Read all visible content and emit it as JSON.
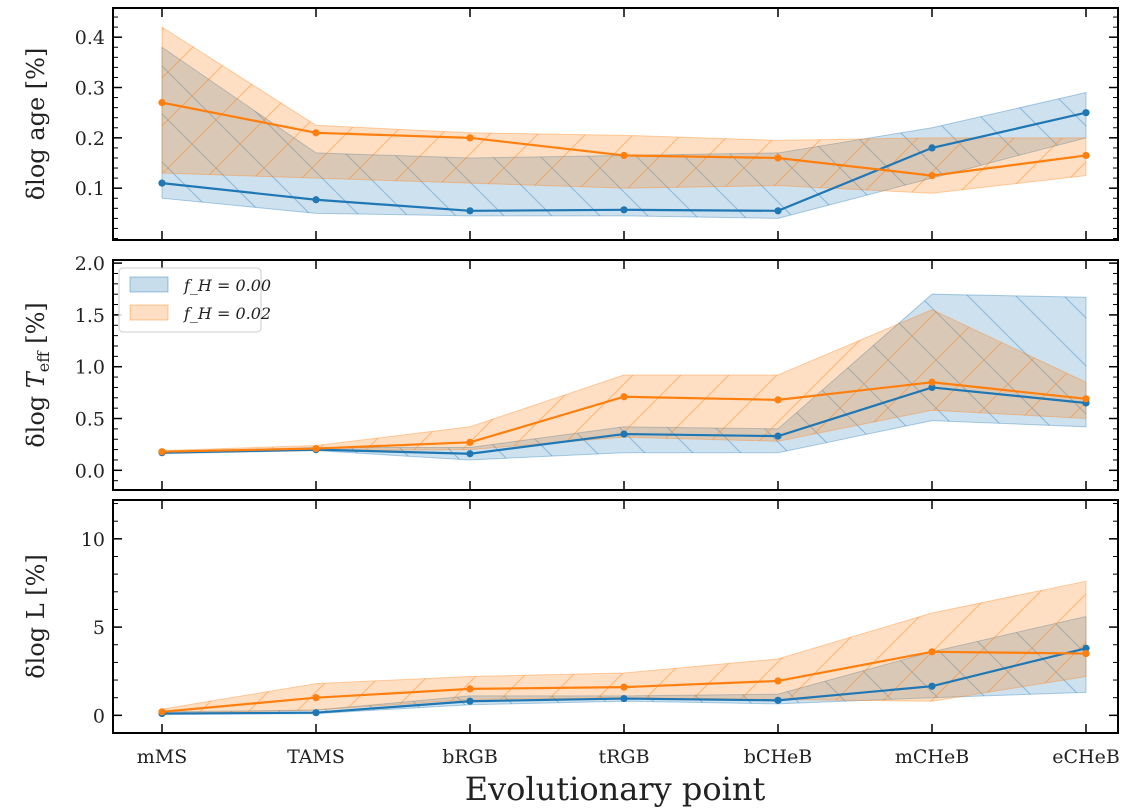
{
  "colors": {
    "blue": "#1f77b4",
    "orange": "#ff7f0e"
  },
  "chart_data": [
    {
      "type": "line",
      "ylabel": "δlog age [%]",
      "categories": [
        "mMS",
        "TAMS",
        "bRGB",
        "tRGB",
        "bCHeB",
        "mCHeB",
        "eCHeB"
      ],
      "ylim": [
        -0.003,
        0.458
      ],
      "yticks": [
        "0.1",
        "0.2",
        "0.3",
        "0.4"
      ],
      "ytick_values": [
        0.1,
        0.2,
        0.3,
        0.4
      ],
      "series": [
        {
          "name": "f_H = 0.00",
          "color": "blue",
          "values": [
            0.11,
            0.077,
            0.055,
            0.057,
            0.055,
            0.18,
            0.25
          ],
          "upper": [
            0.38,
            0.17,
            0.16,
            0.165,
            0.17,
            0.22,
            0.29
          ],
          "lower": [
            0.08,
            0.05,
            0.045,
            0.045,
            0.04,
            0.12,
            0.2
          ]
        },
        {
          "name": "f_H = 0.02",
          "color": "orange",
          "values": [
            0.27,
            0.21,
            0.2,
            0.165,
            0.16,
            0.125,
            0.165
          ],
          "upper": [
            0.42,
            0.225,
            0.21,
            0.205,
            0.195,
            0.2,
            0.2
          ],
          "lower": [
            0.13,
            0.12,
            0.11,
            0.1,
            0.105,
            0.09,
            0.125
          ]
        }
      ]
    },
    {
      "type": "line",
      "ylabel": "δlog T_eff [%]",
      "categories": [
        "mMS",
        "TAMS",
        "bRGB",
        "tRGB",
        "bCHeB",
        "mCHeB",
        "eCHeB"
      ],
      "ylim": [
        -0.19,
        2.03
      ],
      "yticks": [
        "0.0",
        "0.5",
        "1.0",
        "1.5",
        "2.0"
      ],
      "ytick_values": [
        0,
        0.5,
        1.0,
        1.5,
        2.0
      ],
      "legend": {
        "placement": "upper-left",
        "entries": [
          "f_H = 0.00",
          "f_H = 0.02"
        ]
      },
      "series": [
        {
          "name": "f_H = 0.00",
          "color": "blue",
          "values": [
            0.17,
            0.2,
            0.16,
            0.35,
            0.33,
            0.8,
            0.65
          ],
          "upper": [
            0.18,
            0.22,
            0.22,
            0.42,
            0.4,
            1.7,
            1.67
          ],
          "lower": [
            0.16,
            0.19,
            0.1,
            0.17,
            0.17,
            0.48,
            0.42
          ]
        },
        {
          "name": "f_H = 0.02",
          "color": "orange",
          "values": [
            0.18,
            0.21,
            0.27,
            0.71,
            0.68,
            0.85,
            0.69
          ],
          "upper": [
            0.19,
            0.24,
            0.42,
            0.92,
            0.92,
            1.55,
            0.85
          ],
          "lower": [
            0.17,
            0.19,
            0.2,
            0.32,
            0.28,
            0.58,
            0.5
          ]
        }
      ]
    },
    {
      "type": "line",
      "ylabel": "δlog L [%]",
      "xlabel": "Evolutionary point",
      "categories": [
        "mMS",
        "TAMS",
        "bRGB",
        "tRGB",
        "bCHeB",
        "mCHeB",
        "eCHeB"
      ],
      "ylim": [
        -1.0,
        12.2
      ],
      "yticks": [
        "0",
        "5",
        "10"
      ],
      "ytick_values": [
        0,
        5,
        10
      ],
      "series": [
        {
          "name": "f_H = 0.00",
          "color": "blue",
          "values": [
            0.1,
            0.15,
            0.8,
            0.95,
            0.85,
            1.65,
            3.8
          ],
          "upper": [
            0.2,
            0.3,
            1.1,
            1.1,
            1.2,
            3.6,
            5.6
          ],
          "lower": [
            0.05,
            0.1,
            0.6,
            0.8,
            0.65,
            1.0,
            1.3
          ]
        },
        {
          "name": "f_H = 0.02",
          "color": "orange",
          "values": [
            0.2,
            1.0,
            1.5,
            1.6,
            1.95,
            3.6,
            3.5
          ],
          "upper": [
            0.35,
            1.8,
            2.2,
            2.4,
            3.2,
            5.8,
            7.6
          ],
          "lower": [
            0.1,
            0.3,
            0.9,
            1.0,
            0.9,
            0.8,
            2.2
          ]
        }
      ]
    }
  ]
}
